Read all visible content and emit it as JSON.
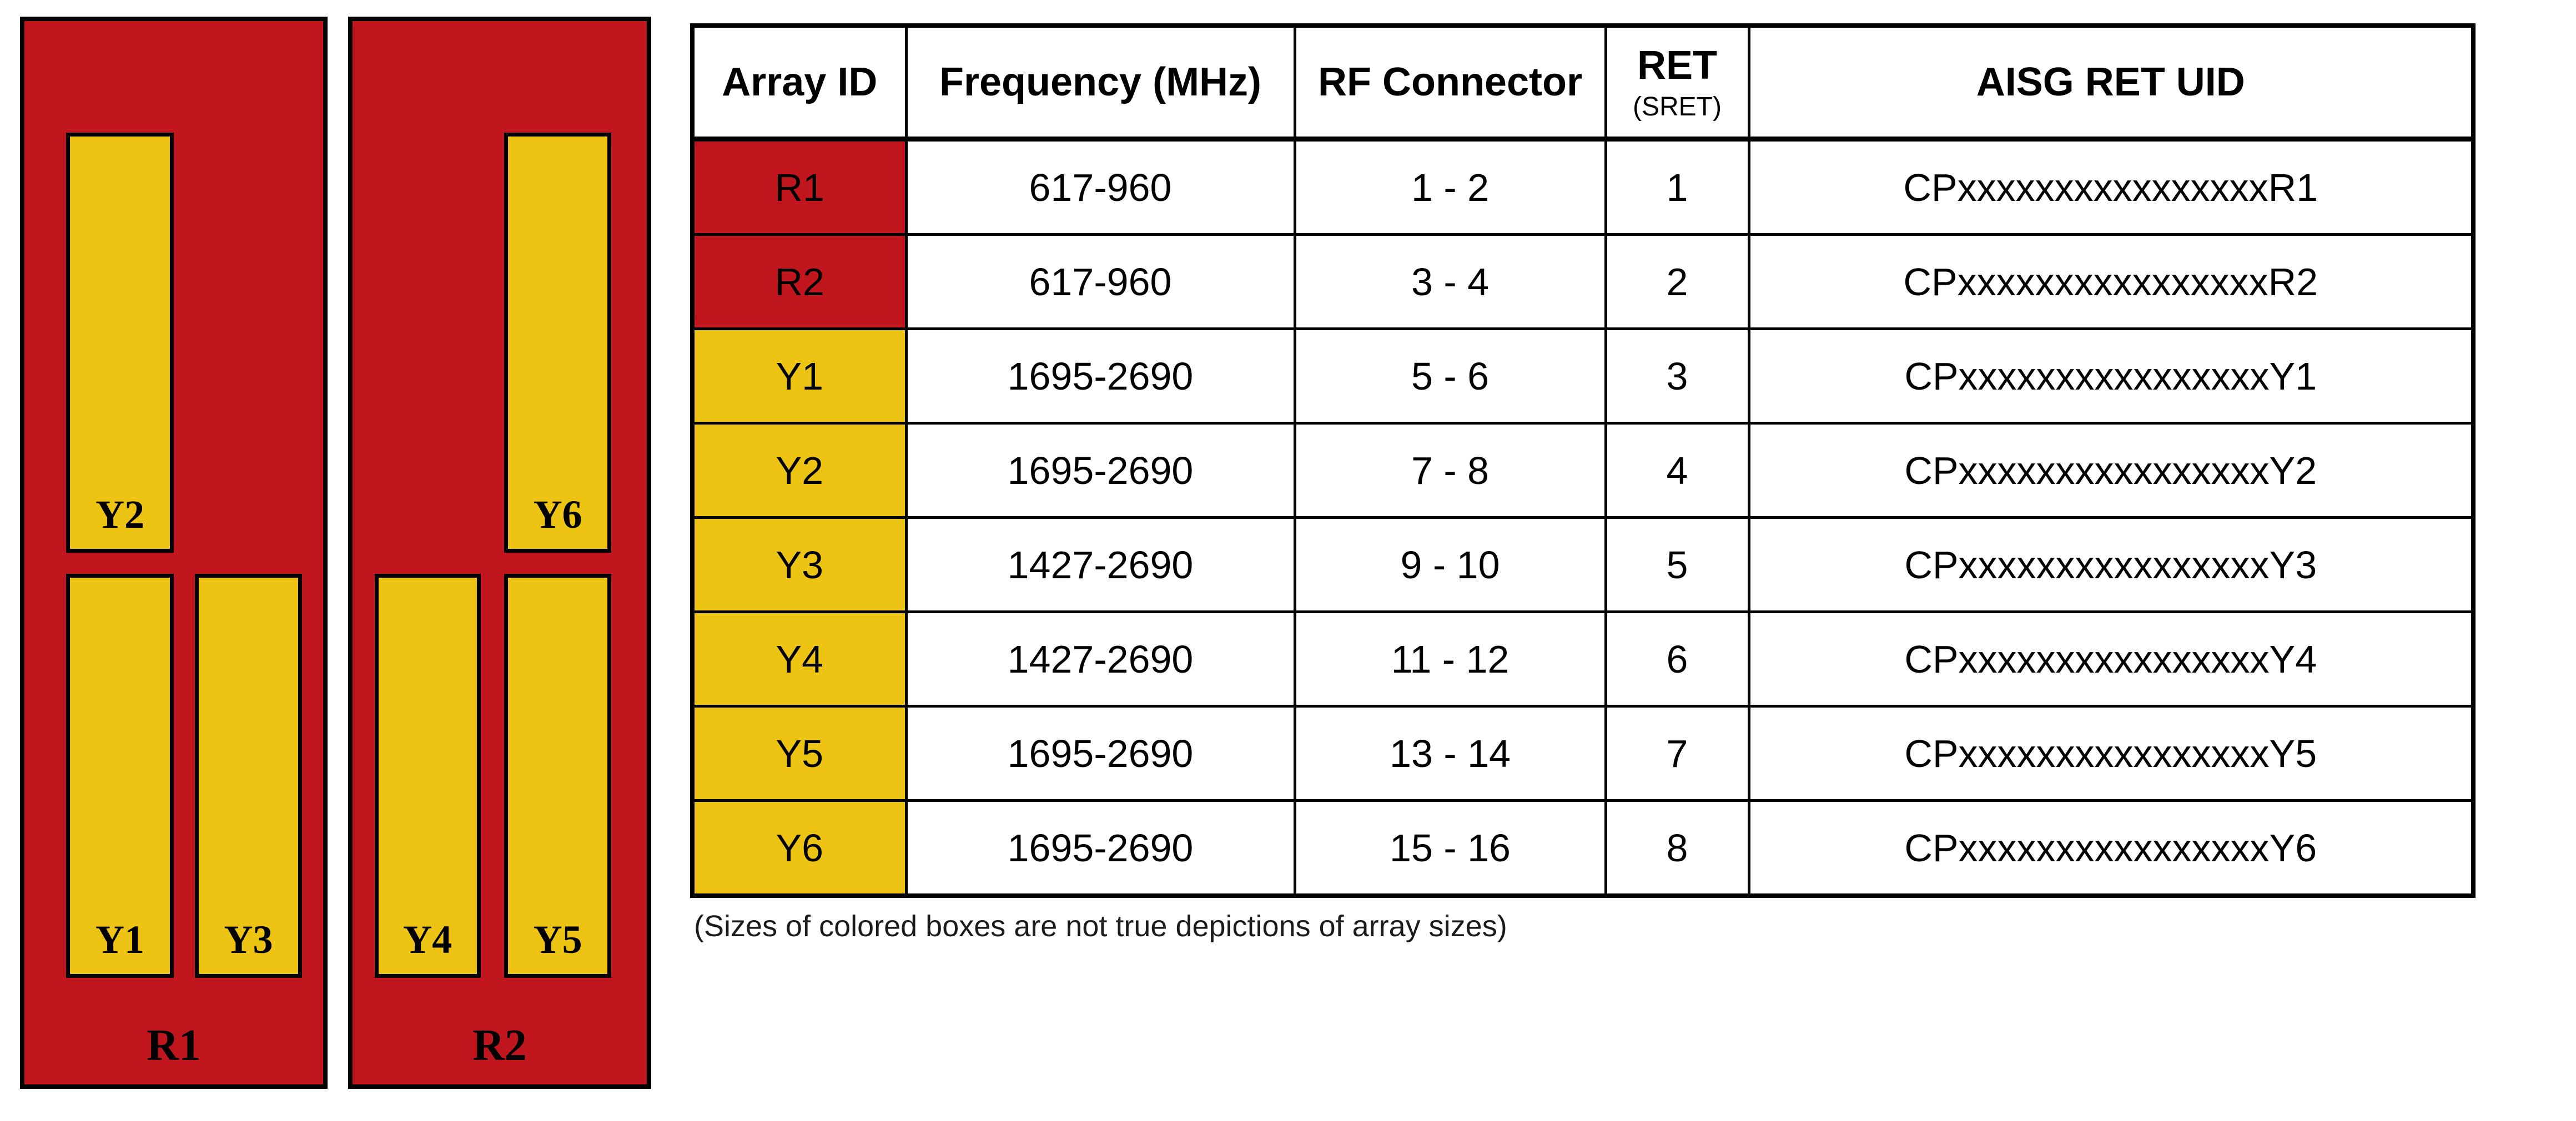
{
  "diagram": {
    "panels": [
      {
        "label": "R1",
        "boxes": [
          {
            "label": "Y2",
            "pos": "top-left"
          },
          {
            "label": "Y1",
            "pos": "bottom-left"
          },
          {
            "label": "Y3",
            "pos": "bottom-right"
          }
        ]
      },
      {
        "label": "R2",
        "boxes": [
          {
            "label": "Y6",
            "pos": "top-right"
          },
          {
            "label": "Y4",
            "pos": "bottom-left"
          },
          {
            "label": "Y5",
            "pos": "bottom-right"
          }
        ]
      }
    ],
    "colors": {
      "panel_red": "#c2161f",
      "box_yellow": "#edc413"
    }
  },
  "table": {
    "headers": [
      "Array ID",
      "Frequency (MHz)",
      "RF Connector",
      "RET",
      "AISG RET UID"
    ],
    "ret_subheader": "(SRET)",
    "rows": [
      {
        "array_id": "R1",
        "color": "red",
        "frequency": "617-960",
        "rf_connector": "1 - 2",
        "ret": "1",
        "aisg_ret_uid": "CPxxxxxxxxxxxxxxxxR1"
      },
      {
        "array_id": "R2",
        "color": "red",
        "frequency": "617-960",
        "rf_connector": "3 - 4",
        "ret": "2",
        "aisg_ret_uid": "CPxxxxxxxxxxxxxxxxR2"
      },
      {
        "array_id": "Y1",
        "color": "yellow",
        "frequency": "1695-2690",
        "rf_connector": "5 - 6",
        "ret": "3",
        "aisg_ret_uid": "CPxxxxxxxxxxxxxxxxY1"
      },
      {
        "array_id": "Y2",
        "color": "yellow",
        "frequency": "1695-2690",
        "rf_connector": "7 - 8",
        "ret": "4",
        "aisg_ret_uid": "CPxxxxxxxxxxxxxxxxY2"
      },
      {
        "array_id": "Y3",
        "color": "yellow",
        "frequency": "1427-2690",
        "rf_connector": "9 - 10",
        "ret": "5",
        "aisg_ret_uid": "CPxxxxxxxxxxxxxxxxY3"
      },
      {
        "array_id": "Y4",
        "color": "yellow",
        "frequency": "1427-2690",
        "rf_connector": "11 - 12",
        "ret": "6",
        "aisg_ret_uid": "CPxxxxxxxxxxxxxxxxY4"
      },
      {
        "array_id": "Y5",
        "color": "yellow",
        "frequency": "1695-2690",
        "rf_connector": "13 - 14",
        "ret": "7",
        "aisg_ret_uid": "CPxxxxxxxxxxxxxxxxY5"
      },
      {
        "array_id": "Y6",
        "color": "yellow",
        "frequency": "1695-2690",
        "rf_connector": "15 - 16",
        "ret": "8",
        "aisg_ret_uid": "CPxxxxxxxxxxxxxxxxY6"
      }
    ]
  },
  "footnote": "(Sizes of colored boxes are not true depictions of array sizes)"
}
